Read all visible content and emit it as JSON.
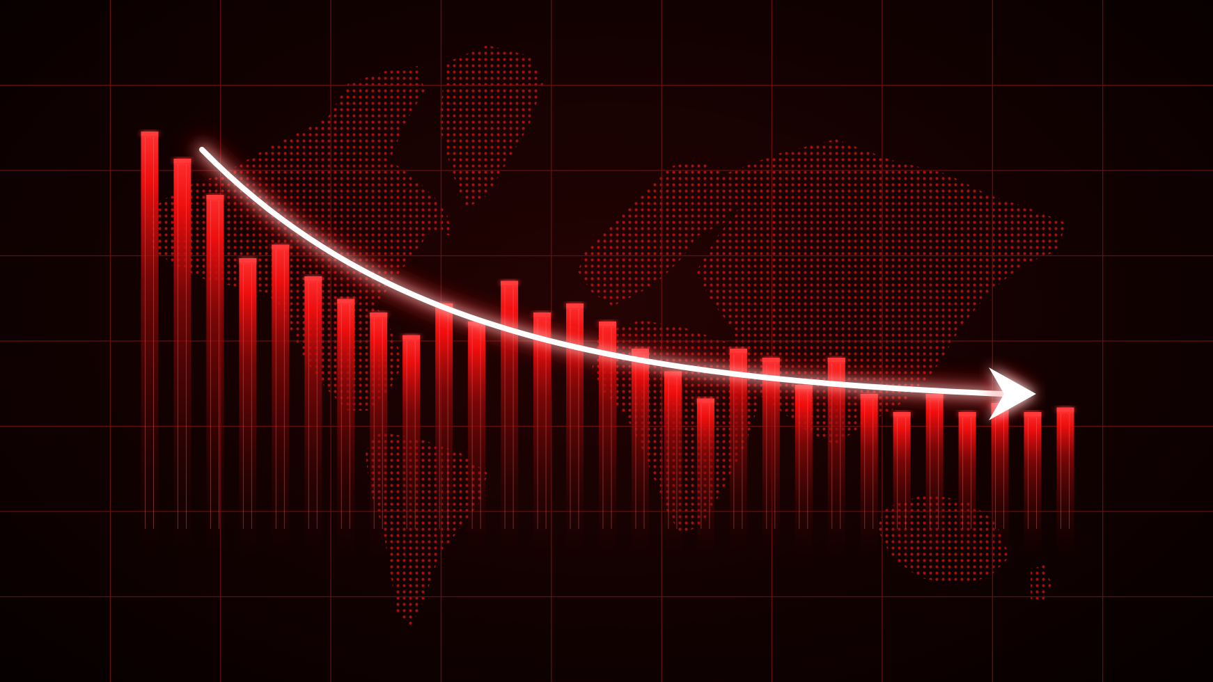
{
  "chart_data": {
    "type": "bar",
    "title": "",
    "xlabel": "",
    "ylabel": "",
    "grid": true,
    "ylim": [
      0,
      100
    ],
    "values": [
      94,
      88,
      80,
      66,
      69,
      62,
      57,
      54,
      49,
      56,
      52,
      61,
      54,
      56,
      52,
      46,
      41,
      35,
      46,
      44,
      38,
      44,
      36,
      32,
      36,
      32,
      34,
      32,
      33
    ],
    "trend": {
      "style": "decreasing-arrow",
      "y_start": 90,
      "y_end": 36
    },
    "background": "dotted-world-map"
  },
  "colors": {
    "background": "#0a0000",
    "grid": "#6e1010",
    "bar": "#ff1a1a",
    "bar_top": "#ff3b3b",
    "map_dots": "#c81414",
    "arrow": "#ffffff",
    "arrow_glow": "#ff2020"
  },
  "icons": {
    "trend_arrow": "arrow-right-icon"
  }
}
